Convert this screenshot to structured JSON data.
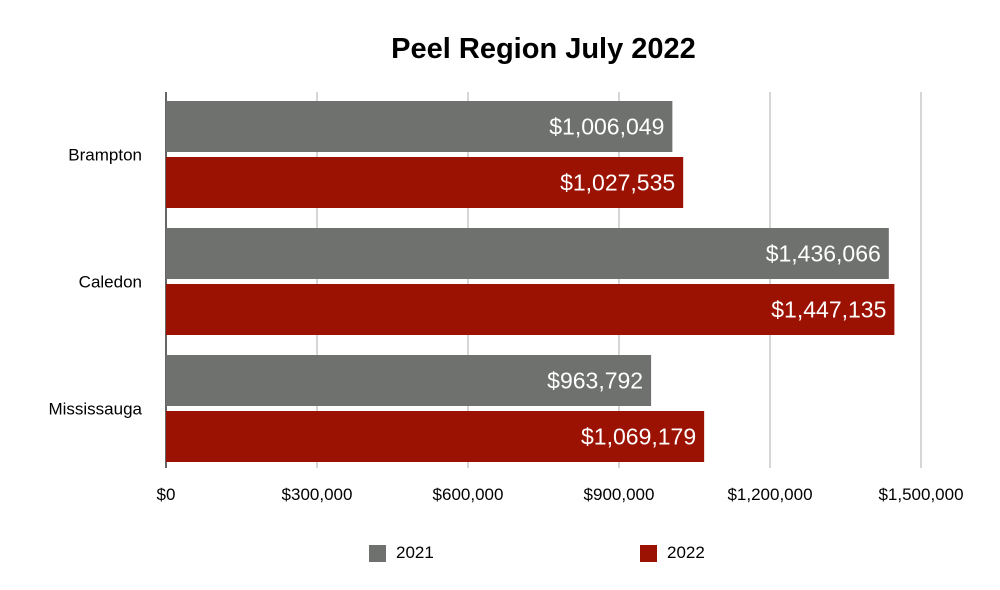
{
  "chart_data": {
    "type": "bar",
    "orientation": "horizontal",
    "title": "Peel Region July 2022",
    "categories": [
      "Brampton",
      "Caledon",
      "Mississauga"
    ],
    "series": [
      {
        "name": "2021",
        "color": "#6e716e",
        "values": [
          1006049,
          1436066,
          963792
        ],
        "labels": [
          "$1,006,049",
          "$1,436,066",
          "$963,792"
        ]
      },
      {
        "name": "2022",
        "color": "#9b1203",
        "values": [
          1027535,
          1447135,
          1069179
        ],
        "labels": [
          "$1,027,535",
          "$1,447,135",
          "$1,069,179"
        ]
      }
    ],
    "xlim": [
      0,
      1500000
    ],
    "xticks": [
      0,
      300000,
      600000,
      900000,
      1200000,
      1500000
    ],
    "xtick_labels": [
      "$0",
      "$300,000",
      "$600,000",
      "$900,000",
      "$1,200,000",
      "$1,500,000"
    ],
    "grid": true,
    "legend_position": "bottom"
  }
}
